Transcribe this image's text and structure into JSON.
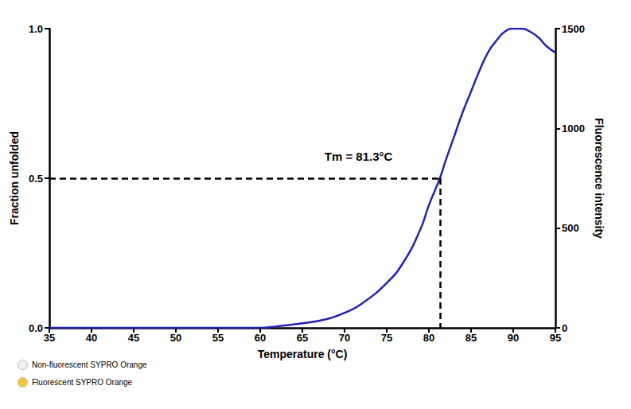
{
  "chart_data": {
    "type": "line",
    "x_label": "Temperature (°C)",
    "y_label": "Fraction unfolded",
    "y2_label": "Fluorescence intensity",
    "x": [
      35,
      40,
      45,
      50,
      55,
      60,
      62,
      65,
      68,
      70,
      72,
      75,
      77,
      79,
      80,
      81.3,
      82,
      83,
      84,
      85,
      86,
      87,
      88,
      89,
      90,
      91,
      92,
      93,
      94,
      95
    ],
    "values": [
      0,
      0,
      0,
      0,
      0,
      0,
      0.005,
      0.015,
      0.03,
      0.05,
      0.08,
      0.15,
      0.22,
      0.33,
      0.41,
      0.5,
      0.56,
      0.64,
      0.72,
      0.79,
      0.86,
      0.92,
      0.96,
      0.99,
      1.0,
      1.0,
      0.99,
      0.97,
      0.94,
      0.92
    ],
    "color": "#2323b0",
    "xlim": [
      35,
      95
    ],
    "xticks": [
      35,
      40,
      45,
      50,
      55,
      60,
      65,
      70,
      75,
      80,
      85,
      90,
      95
    ],
    "ylim": [
      0,
      1
    ],
    "yticks": [
      {
        "value": 0,
        "label": "0.0"
      },
      {
        "value": 0.5,
        "label": "0.5"
      },
      {
        "value": 1,
        "label": "1.0"
      }
    ],
    "y2lim": [
      0,
      1500
    ],
    "y2ticks": [
      0,
      500,
      1000,
      1500
    ],
    "annotation": {
      "text": "Tm = 81.3°C",
      "x": 81.3,
      "y": 0.5
    },
    "symbol_key": [
      {
        "label": "Non-fluorescent SYPRO Orange",
        "color": "#f2f2f2"
      },
      {
        "label": "Fluorescent SYPRO Orange",
        "color": "#f5c242"
      }
    ],
    "grid": false
  }
}
